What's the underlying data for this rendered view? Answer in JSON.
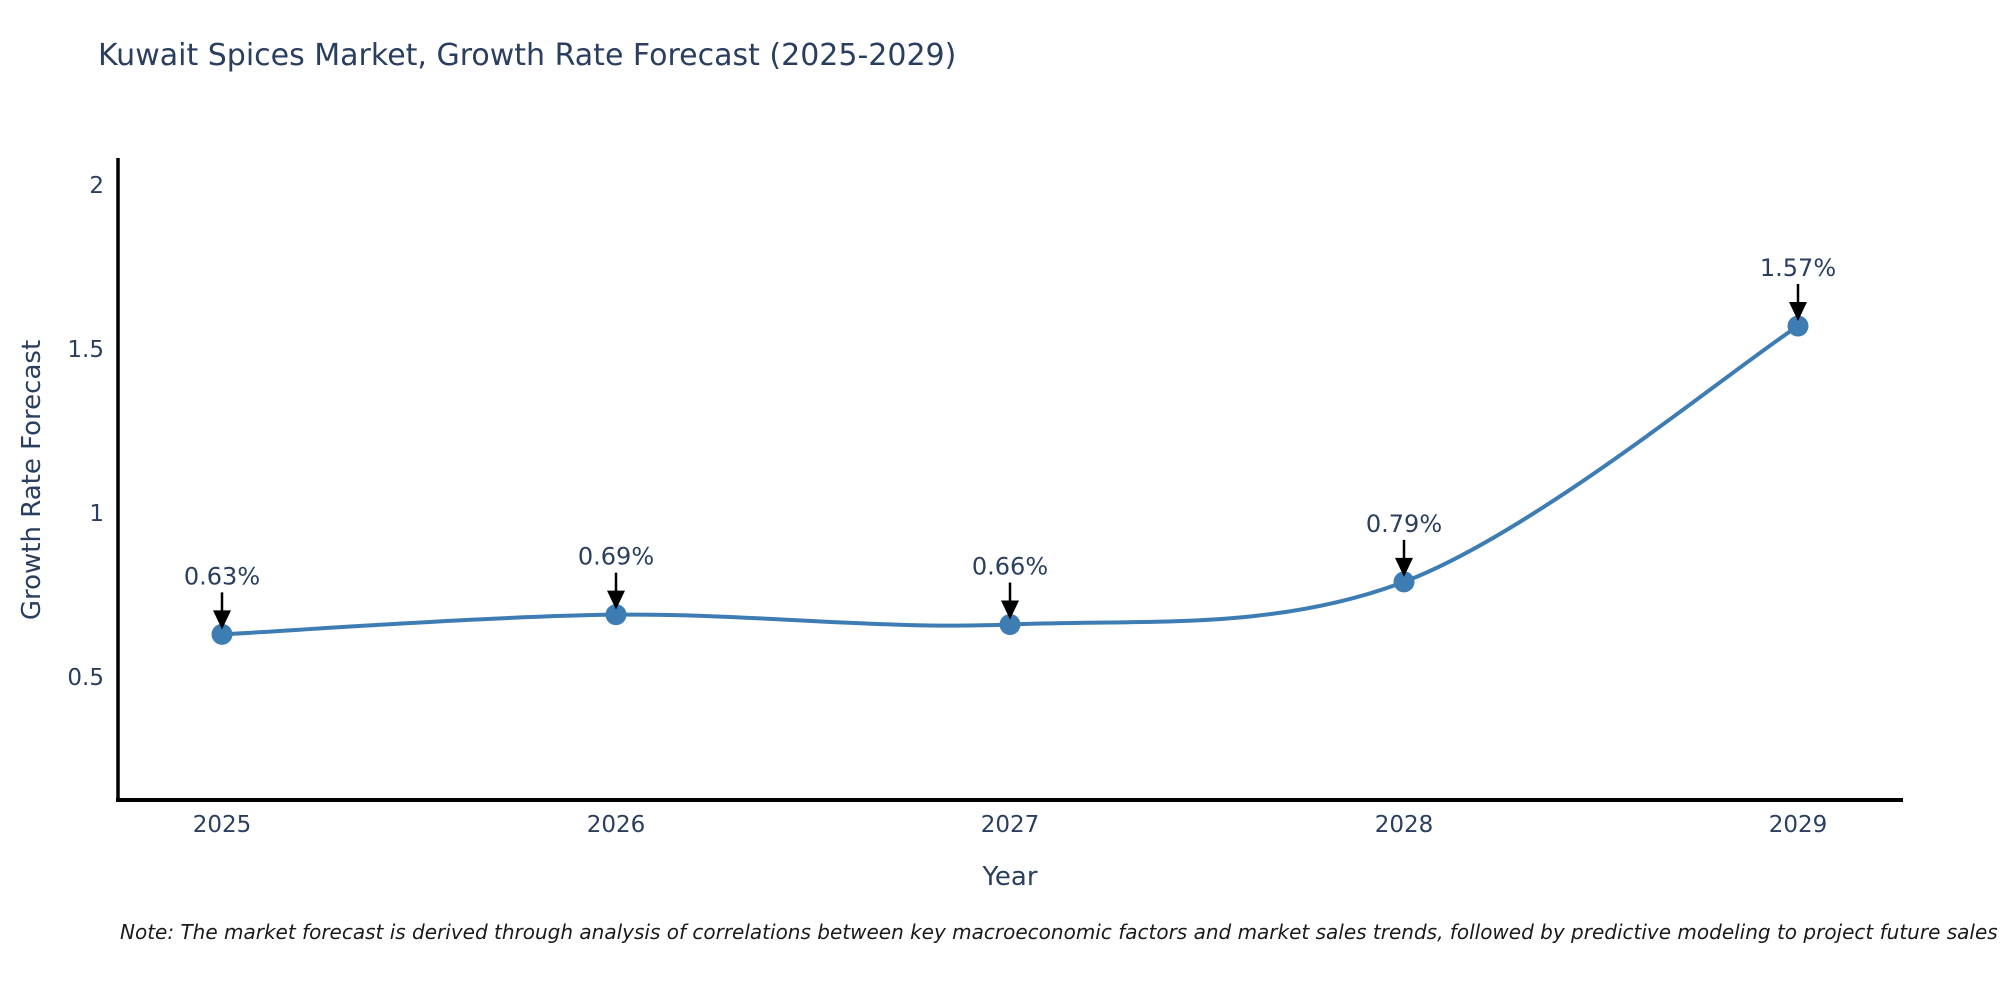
{
  "note": "Note: The market forecast is derived through analysis of correlations between key macroeconomic factors and market sales trends, followed by predictive modeling to project future sales",
  "chart_data": {
    "type": "line",
    "title": "Kuwait Spices Market, Growth Rate Forecast (2025-2029)",
    "xlabel": "Year",
    "ylabel": "Growth Rate Forecast",
    "line_shape": "spline",
    "grid": false,
    "legend": "none",
    "x": [
      2025,
      2026,
      2027,
      2028,
      2029
    ],
    "y": [
      0.63,
      0.69,
      0.66,
      0.79,
      1.57
    ],
    "point_labels": [
      "0.63%",
      "0.69%",
      "0.66%",
      "0.79%",
      "1.57%"
    ],
    "xtick_labels": [
      "2025",
      "2026",
      "2027",
      "2028",
      "2029"
    ],
    "xtick_values": [
      2025,
      2026,
      2027,
      2028,
      2029
    ],
    "ytick_labels": [
      "0.5",
      "1",
      "1.5",
      "2"
    ],
    "ytick_values": [
      0.5,
      1,
      1.5,
      2
    ],
    "xlim": [
      2024.74,
      2029.26
    ],
    "ylim": [
      0.125,
      2.075
    ],
    "colors": {
      "line": "#3e7db3",
      "marker": "#3e7db3",
      "axis": "#000000",
      "tick_text": "#2a3f5f",
      "title_text": "#2a3f5f",
      "annotation_text": "#2a3f5f",
      "annotation_arrow": "#000000",
      "note_text": "#1a1a1a",
      "background": "#ffffff"
    }
  }
}
